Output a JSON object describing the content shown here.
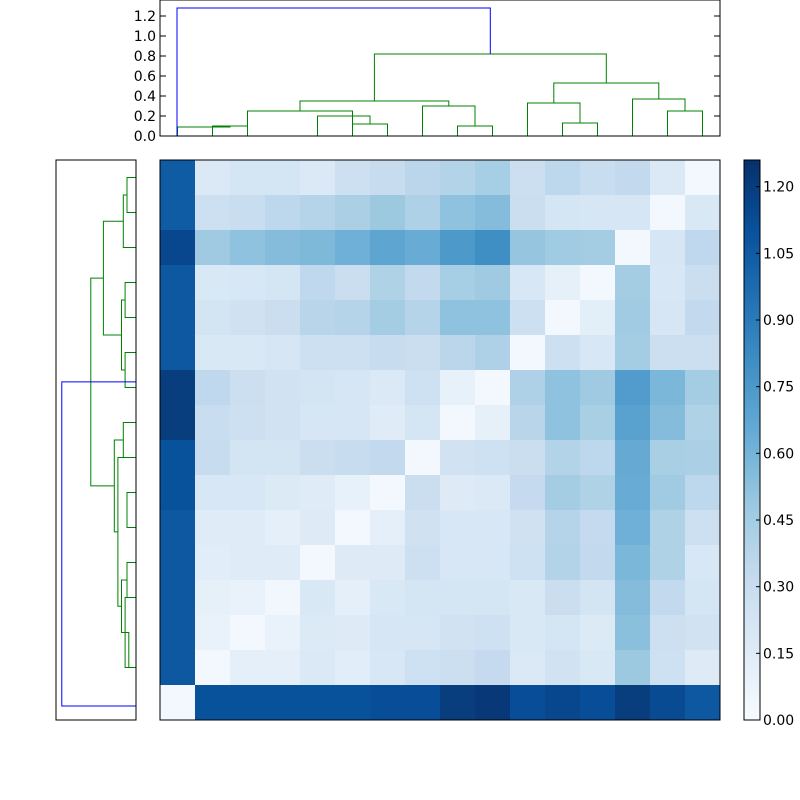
{
  "chart_data": [
    {
      "type": "dendrogram",
      "orientation": "top",
      "ylim": [
        0,
        1.3
      ],
      "yticks": [
        "0.0",
        "0.2",
        "0.4",
        "0.6",
        "0.8",
        "1.0",
        "1.2"
      ],
      "link_colors": {
        "above_threshold": "#0000ff",
        "cluster": "#008000"
      },
      "links": [
        {
          "x": [
            1,
            2
          ],
          "h": 0.1
        },
        {
          "x": [
            0,
            1.5
          ],
          "h": 0.09
        },
        {
          "x": [
            5,
            6
          ],
          "h": 0.12
        },
        {
          "x": [
            4,
            5.5
          ],
          "h": 0.2
        },
        {
          "x": [
            2,
            5
          ],
          "h": 0.25
        },
        {
          "x": [
            8,
            9
          ],
          "h": 0.1
        },
        {
          "x": [
            7,
            8.5
          ],
          "h": 0.3
        },
        {
          "x": [
            3.5,
            7.75
          ],
          "h": 0.35
        },
        {
          "x": [
            11,
            12
          ],
          "h": 0.13
        },
        {
          "x": [
            10,
            11.5
          ],
          "h": 0.33
        },
        {
          "x": [
            14,
            15
          ],
          "h": 0.25
        },
        {
          "x": [
            13,
            14.5
          ],
          "h": 0.37
        },
        {
          "x": [
            10.75,
            13.75
          ],
          "h": 0.53
        },
        {
          "x": [
            5.625,
            12.25
          ],
          "h": 0.82
        },
        {
          "x": [
            -1,
            8.9375
          ],
          "h": 1.28,
          "above_threshold": true
        }
      ]
    },
    {
      "type": "dendrogram",
      "orientation": "left",
      "link_colors": {
        "above_threshold": "#0000ff",
        "cluster": "#008000"
      },
      "links": [
        {
          "y": [
            0,
            1
          ],
          "h": 0.05
        },
        {
          "y": [
            0.5,
            2
          ],
          "h": 0.07
        },
        {
          "y": [
            3,
            4
          ],
          "h": 0.06
        },
        {
          "y": [
            5,
            6
          ],
          "h": 0.06
        },
        {
          "y": [
            3.5,
            5.5
          ],
          "h": 0.08
        },
        {
          "y": [
            1.25,
            4.5
          ],
          "h": 0.18
        },
        {
          "y": [
            7,
            8
          ],
          "h": 0.07
        },
        {
          "y": [
            9,
            10
          ],
          "h": 0.05
        },
        {
          "y": [
            11,
            12
          ],
          "h": 0.05
        },
        {
          "y": [
            13,
            14
          ],
          "h": 0.04
        },
        {
          "y": [
            12,
            14
          ],
          "h": 0.06
        },
        {
          "y": [
            11.5,
            13
          ],
          "h": 0.08
        },
        {
          "y": [
            8,
            12.25
          ],
          "h": 0.1
        },
        {
          "y": [
            7.5,
            10.125
          ],
          "h": 0.12
        },
        {
          "y": [
            2.875,
            8.8125
          ],
          "h": 0.25
        },
        {
          "y": [
            5.84,
            16
          ],
          "h": 0.41,
          "above_threshold": true
        }
      ]
    },
    {
      "type": "heatmap",
      "colormap": "Blues",
      "rows": 16,
      "cols": 16,
      "values": [
        [
          1.05,
          0.18,
          0.22,
          0.22,
          0.18,
          0.27,
          0.31,
          0.36,
          0.39,
          0.44,
          0.28,
          0.35,
          0.3,
          0.33,
          0.18,
          0.03
        ],
        [
          1.05,
          0.27,
          0.3,
          0.35,
          0.38,
          0.42,
          0.48,
          0.41,
          0.52,
          0.55,
          0.29,
          0.22,
          0.21,
          0.21,
          0.03,
          0.19
        ],
        [
          1.15,
          0.47,
          0.52,
          0.55,
          0.57,
          0.62,
          0.68,
          0.64,
          0.75,
          0.8,
          0.5,
          0.46,
          0.45,
          0.03,
          0.21,
          0.34
        ],
        [
          1.07,
          0.19,
          0.2,
          0.22,
          0.34,
          0.29,
          0.4,
          0.33,
          0.44,
          0.47,
          0.2,
          0.11,
          0.03,
          0.45,
          0.2,
          0.29
        ],
        [
          1.07,
          0.23,
          0.25,
          0.29,
          0.37,
          0.38,
          0.45,
          0.38,
          0.52,
          0.52,
          0.27,
          0.03,
          0.13,
          0.46,
          0.21,
          0.33
        ],
        [
          1.07,
          0.19,
          0.19,
          0.21,
          0.27,
          0.27,
          0.31,
          0.29,
          0.36,
          0.41,
          0.03,
          0.27,
          0.2,
          0.45,
          0.28,
          0.28
        ],
        [
          1.2,
          0.34,
          0.28,
          0.24,
          0.23,
          0.21,
          0.18,
          0.26,
          0.1,
          0.03,
          0.41,
          0.52,
          0.47,
          0.73,
          0.58,
          0.45
        ],
        [
          1.2,
          0.3,
          0.27,
          0.24,
          0.21,
          0.21,
          0.15,
          0.22,
          0.03,
          0.11,
          0.37,
          0.52,
          0.43,
          0.7,
          0.55,
          0.4
        ],
        [
          1.1,
          0.31,
          0.23,
          0.23,
          0.29,
          0.31,
          0.33,
          0.03,
          0.24,
          0.26,
          0.29,
          0.39,
          0.35,
          0.65,
          0.43,
          0.42
        ],
        [
          1.1,
          0.2,
          0.2,
          0.17,
          0.15,
          0.1,
          0.03,
          0.29,
          0.16,
          0.18,
          0.32,
          0.45,
          0.4,
          0.64,
          0.46,
          0.35
        ],
        [
          1.07,
          0.15,
          0.15,
          0.12,
          0.16,
          0.03,
          0.12,
          0.25,
          0.2,
          0.2,
          0.25,
          0.38,
          0.32,
          0.62,
          0.4,
          0.27
        ],
        [
          1.07,
          0.14,
          0.15,
          0.15,
          0.03,
          0.16,
          0.16,
          0.27,
          0.2,
          0.2,
          0.26,
          0.39,
          0.33,
          0.58,
          0.4,
          0.2
        ],
        [
          1.07,
          0.11,
          0.09,
          0.04,
          0.19,
          0.12,
          0.19,
          0.22,
          0.22,
          0.22,
          0.19,
          0.29,
          0.23,
          0.55,
          0.33,
          0.22
        ],
        [
          1.07,
          0.09,
          0.03,
          0.09,
          0.17,
          0.16,
          0.21,
          0.21,
          0.24,
          0.26,
          0.19,
          0.22,
          0.17,
          0.53,
          0.27,
          0.24
        ],
        [
          1.07,
          0.03,
          0.12,
          0.12,
          0.18,
          0.14,
          0.2,
          0.26,
          0.28,
          0.32,
          0.18,
          0.24,
          0.19,
          0.48,
          0.26,
          0.16
        ],
        [
          0.03,
          1.1,
          1.1,
          1.1,
          1.1,
          1.1,
          1.12,
          1.12,
          1.2,
          1.22,
          1.12,
          1.15,
          1.12,
          1.2,
          1.13,
          1.07
        ]
      ]
    },
    {
      "type": "colorbar",
      "colormap": "Blues",
      "vmin": 0.0,
      "vmax": 1.26,
      "ticks": [
        0.0,
        0.15,
        0.3,
        0.45,
        0.6,
        0.75,
        0.9,
        1.05,
        1.2
      ],
      "tick_labels": [
        "0.00",
        "0.15",
        "0.30",
        "0.45",
        "0.60",
        "0.75",
        "0.90",
        "1.05",
        "1.20"
      ]
    }
  ]
}
